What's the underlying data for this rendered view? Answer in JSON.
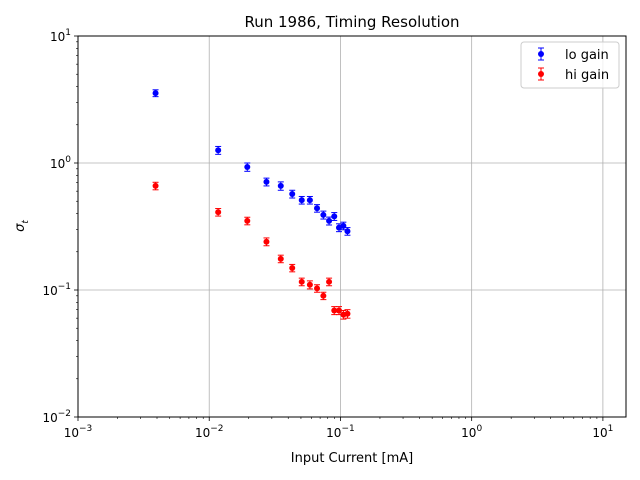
{
  "chart_data": {
    "type": "scatter",
    "title": "Run 1986, Timing Resolution",
    "xlabel": "Input Current [mA]",
    "ylabel_base": "σ",
    "ylabel_sub": "t",
    "xscale": "log",
    "yscale": "log",
    "xlim": [
      0.001,
      15
    ],
    "ylim": [
      0.01,
      10
    ],
    "grid": true,
    "legend_position": "top-right",
    "x_ticks": [
      {
        "value": 0.001,
        "base": "10",
        "exp": "−3"
      },
      {
        "value": 0.01,
        "base": "10",
        "exp": "−2"
      },
      {
        "value": 0.1,
        "base": "10",
        "exp": "−1"
      },
      {
        "value": 1,
        "base": "10",
        "exp": "0"
      },
      {
        "value": 10,
        "base": "10",
        "exp": "1"
      }
    ],
    "y_ticks": [
      {
        "value": 0.01,
        "base": "10",
        "exp": "−2"
      },
      {
        "value": 0.1,
        "base": "10",
        "exp": "−1"
      },
      {
        "value": 1,
        "base": "10",
        "exp": "0"
      },
      {
        "value": 10,
        "base": "10",
        "exp": "1"
      }
    ],
    "series": [
      {
        "name": "lo gain",
        "color": "#0000ff",
        "x": [
          0.0039,
          0.0117,
          0.0195,
          0.0273,
          0.0351,
          0.0429,
          0.0507,
          0.0585,
          0.0663,
          0.0741,
          0.0819,
          0.0897,
          0.0975,
          0.1053,
          0.1131
        ],
        "y": [
          3.55,
          1.26,
          0.93,
          0.71,
          0.66,
          0.57,
          0.51,
          0.51,
          0.44,
          0.39,
          0.35,
          0.38,
          0.31,
          0.32,
          0.29
        ],
        "yerr": [
          0.22,
          0.09,
          0.07,
          0.05,
          0.05,
          0.04,
          0.035,
          0.035,
          0.03,
          0.028,
          0.025,
          0.027,
          0.022,
          0.022,
          0.02
        ]
      },
      {
        "name": "hi gain",
        "color": "#ff0000",
        "x": [
          0.0039,
          0.0117,
          0.0195,
          0.0273,
          0.0351,
          0.0429,
          0.0507,
          0.0585,
          0.0663,
          0.0741,
          0.0819,
          0.0897,
          0.0975,
          0.1053,
          0.1131
        ],
        "y": [
          0.66,
          0.41,
          0.35,
          0.24,
          0.176,
          0.149,
          0.116,
          0.11,
          0.103,
          0.09,
          0.116,
          0.069,
          0.069,
          0.064,
          0.065
        ],
        "yerr": [
          0.045,
          0.028,
          0.024,
          0.017,
          0.012,
          0.01,
          0.008,
          0.008,
          0.007,
          0.006,
          0.008,
          0.005,
          0.005,
          0.005,
          0.005
        ]
      }
    ]
  }
}
